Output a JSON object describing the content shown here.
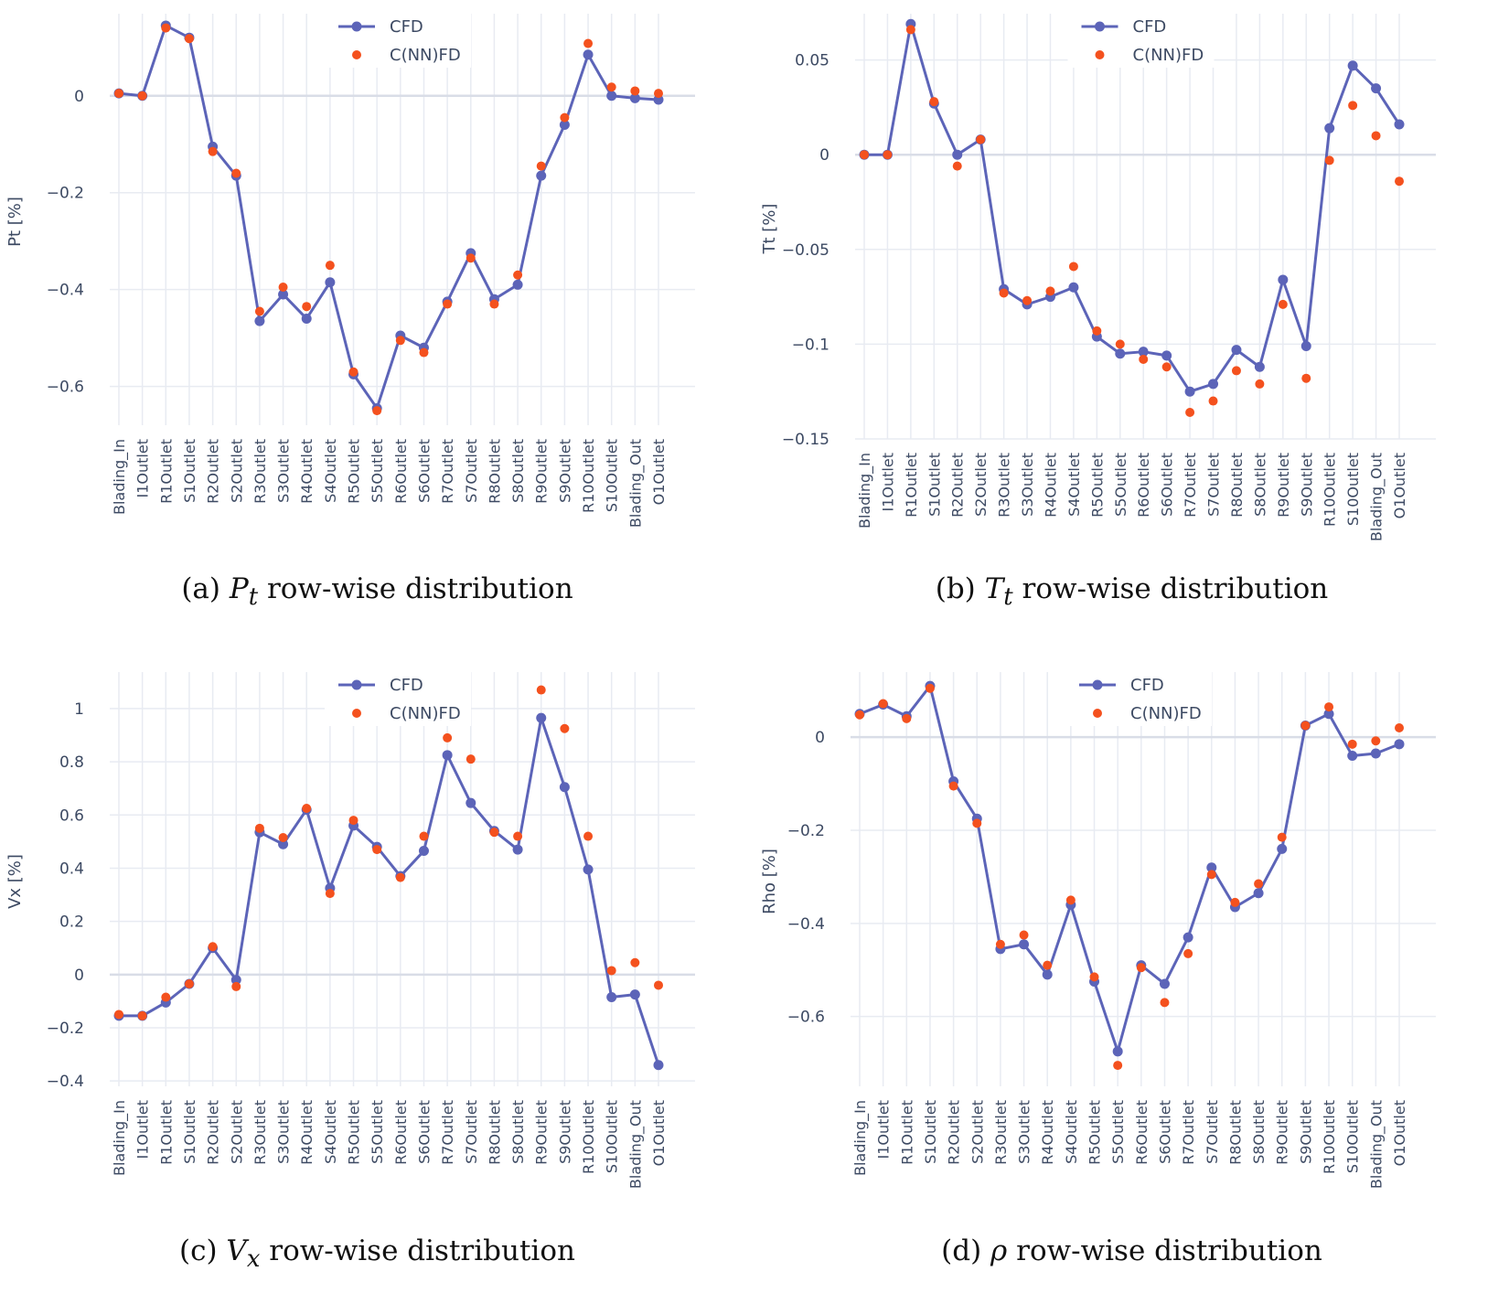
{
  "chart_data": [
    {
      "type": "line",
      "id": "a",
      "title": "",
      "ylabel": "Pt [%]",
      "caption": {
        "prefix": "(a) ",
        "symbol": "P",
        "subscript": "t",
        "suffix": " row-wise distribution"
      },
      "categories": [
        "Blading_In",
        "I1Outlet",
        "R1Outlet",
        "S1Outlet",
        "R2Outlet",
        "S2Outlet",
        "R3Outlet",
        "S3Outlet",
        "R4Outlet",
        "S4Outlet",
        "R5Outlet",
        "S5Outlet",
        "R6Outlet",
        "S6Outlet",
        "R7Outlet",
        "S7Outlet",
        "R8Outlet",
        "S8Outlet",
        "R9Outlet",
        "S9Outlet",
        "R10Outlet",
        "S10Outlet",
        "Blading_Out",
        "O1Outlet"
      ],
      "ylim": [
        -0.68,
        0.16
      ],
      "yticks": [
        0,
        -0.2,
        -0.4,
        -0.6
      ],
      "ytick_labels": [
        "0",
        "−0.2",
        "−0.4",
        "−0.6"
      ],
      "legend": {
        "position": "top-center"
      },
      "series": [
        {
          "name": "CFD",
          "mode": "lines+markers",
          "color": "#5c64b8",
          "values": [
            0.005,
            0.0,
            0.145,
            0.12,
            -0.105,
            -0.165,
            -0.465,
            -0.41,
            -0.46,
            -0.385,
            -0.575,
            -0.645,
            -0.495,
            -0.52,
            -0.425,
            -0.325,
            -0.42,
            -0.39,
            -0.165,
            -0.06,
            0.085,
            0.0,
            -0.005,
            -0.008
          ]
        },
        {
          "name": "C(NN)FD",
          "mode": "markers",
          "color": "#f4511e",
          "values": [
            0.005,
            0.0,
            0.14,
            0.118,
            -0.115,
            -0.16,
            -0.445,
            -0.395,
            -0.435,
            -0.35,
            -0.57,
            -0.65,
            -0.505,
            -0.53,
            -0.43,
            -0.335,
            -0.43,
            -0.37,
            -0.145,
            -0.045,
            0.108,
            0.018,
            0.01,
            0.005
          ]
        }
      ]
    },
    {
      "type": "line",
      "id": "b",
      "title": "",
      "ylabel": "Tt [%]",
      "caption": {
        "prefix": "(b) ",
        "symbol": "T",
        "subscript": "t",
        "suffix": " row-wise distribution"
      },
      "categories": [
        "Blading_In",
        "I1Outlet",
        "R1Outlet",
        "S1Outlet",
        "R2Outlet",
        "S2Outlet",
        "R3Outlet",
        "S3Outlet",
        "R4Outlet",
        "S4Outlet",
        "R5Outlet",
        "S5Outlet",
        "R6Outlet",
        "S6Outlet",
        "R7Outlet",
        "S7Outlet",
        "R8Outlet",
        "S8Outlet",
        "R9Outlet",
        "S9Outlet",
        "R10Outlet",
        "S10Outlet",
        "Blading_Out",
        "O1Outlet"
      ],
      "ylim": [
        -0.15,
        0.072
      ],
      "yticks": [
        0.05,
        0,
        -0.05,
        -0.1,
        -0.15
      ],
      "ytick_labels": [
        "0.05",
        "0",
        "−0.05",
        "−0.1",
        "−0.15"
      ],
      "legend": {
        "position": "top-center"
      },
      "series": [
        {
          "name": "CFD",
          "mode": "lines+markers",
          "color": "#5c64b8",
          "values": [
            0.0,
            0.0,
            0.069,
            0.027,
            0.0,
            0.008,
            -0.071,
            -0.079,
            -0.075,
            -0.07,
            -0.096,
            -0.105,
            -0.104,
            -0.106,
            -0.125,
            -0.121,
            -0.103,
            -0.112,
            -0.066,
            -0.101,
            0.014,
            0.047,
            0.035,
            0.016
          ]
        },
        {
          "name": "C(NN)FD",
          "mode": "markers",
          "color": "#f4511e",
          "values": [
            0.0,
            0.0,
            0.066,
            0.028,
            -0.006,
            0.008,
            -0.073,
            -0.077,
            -0.072,
            -0.059,
            -0.093,
            -0.1,
            -0.108,
            -0.112,
            -0.136,
            -0.13,
            -0.114,
            -0.121,
            -0.079,
            -0.118,
            -0.003,
            0.026,
            0.01,
            -0.014
          ]
        }
      ]
    },
    {
      "type": "line",
      "id": "c",
      "title": "",
      "ylabel": "Vx [%]",
      "caption": {
        "prefix": "(c) ",
        "symbol": "V",
        "subscript": "x",
        "suffix": " row-wise distribution"
      },
      "categories": [
        "Blading_In",
        "I1Outlet",
        "R1Outlet",
        "S1Outlet",
        "R2Outlet",
        "S2Outlet",
        "R3Outlet",
        "S3Outlet",
        "R4Outlet",
        "S4Outlet",
        "R5Outlet",
        "S5Outlet",
        "R6Outlet",
        "S6Outlet",
        "R7Outlet",
        "S7Outlet",
        "R8Outlet",
        "S8Outlet",
        "R9Outlet",
        "S9Outlet",
        "R10Outlet",
        "S10Outlet",
        "Blading_Out",
        "O1Outlet"
      ],
      "ylim": [
        -0.42,
        1.12
      ],
      "yticks": [
        1,
        0.8,
        0.6,
        0.4,
        0.2,
        0,
        -0.2,
        -0.4
      ],
      "ytick_labels": [
        "1",
        "0.8",
        "0.6",
        "0.4",
        "0.2",
        "0",
        "−0.2",
        "−0.4"
      ],
      "legend": {
        "position": "top-center"
      },
      "series": [
        {
          "name": "CFD",
          "mode": "lines+markers",
          "color": "#5c64b8",
          "values": [
            -0.155,
            -0.155,
            -0.105,
            -0.035,
            0.1,
            -0.02,
            0.535,
            0.49,
            0.62,
            0.325,
            0.56,
            0.48,
            0.37,
            0.465,
            0.825,
            0.645,
            0.54,
            0.47,
            0.965,
            0.705,
            0.395,
            -0.085,
            -0.075,
            -0.34
          ]
        },
        {
          "name": "C(NN)FD",
          "mode": "markers",
          "color": "#f4511e",
          "values": [
            -0.15,
            -0.155,
            -0.085,
            -0.035,
            0.105,
            -0.045,
            0.55,
            0.515,
            0.625,
            0.305,
            0.58,
            0.47,
            0.365,
            0.52,
            0.89,
            0.81,
            0.535,
            0.52,
            1.07,
            0.925,
            0.52,
            0.015,
            0.045,
            -0.04
          ]
        }
      ]
    },
    {
      "type": "line",
      "id": "d",
      "title": "",
      "ylabel": "Rho [%]",
      "caption": {
        "prefix": "(d) ",
        "symbol": "ρ",
        "subscript": "",
        "suffix": " row-wise distribution"
      },
      "categories": [
        "Blading_In",
        "I1Outlet",
        "R1Outlet",
        "S1Outlet",
        "R2Outlet",
        "S2Outlet",
        "R3Outlet",
        "S3Outlet",
        "R4Outlet",
        "S4Outlet",
        "R5Outlet",
        "S5Outlet",
        "R6Outlet",
        "S6Outlet",
        "R7Outlet",
        "S7Outlet",
        "R8Outlet",
        "S8Outlet",
        "R9Outlet",
        "S9Outlet",
        "R10Outlet",
        "S10Outlet",
        "Blading_Out",
        "O1Outlet"
      ],
      "ylim": [
        -0.75,
        0.13
      ],
      "yticks": [
        0,
        -0.2,
        -0.4,
        -0.6
      ],
      "ytick_labels": [
        "0",
        "−0.2",
        "−0.4",
        "−0.6"
      ],
      "legend": {
        "position": "top-center"
      },
      "series": [
        {
          "name": "CFD",
          "mode": "lines+markers",
          "color": "#5c64b8",
          "values": [
            0.05,
            0.07,
            0.045,
            0.11,
            -0.095,
            -0.175,
            -0.455,
            -0.445,
            -0.51,
            -0.36,
            -0.525,
            -0.675,
            -0.49,
            -0.53,
            -0.43,
            -0.28,
            -0.365,
            -0.335,
            -0.24,
            0.025,
            0.05,
            -0.04,
            -0.035,
            -0.015
          ]
        },
        {
          "name": "C(NN)FD",
          "mode": "markers",
          "color": "#f4511e",
          "values": [
            0.048,
            0.072,
            0.04,
            0.105,
            -0.105,
            -0.185,
            -0.445,
            -0.425,
            -0.49,
            -0.35,
            -0.515,
            -0.705,
            -0.495,
            -0.57,
            -0.465,
            -0.295,
            -0.355,
            -0.315,
            -0.215,
            0.025,
            0.065,
            -0.015,
            -0.008,
            0.02
          ]
        }
      ]
    }
  ]
}
